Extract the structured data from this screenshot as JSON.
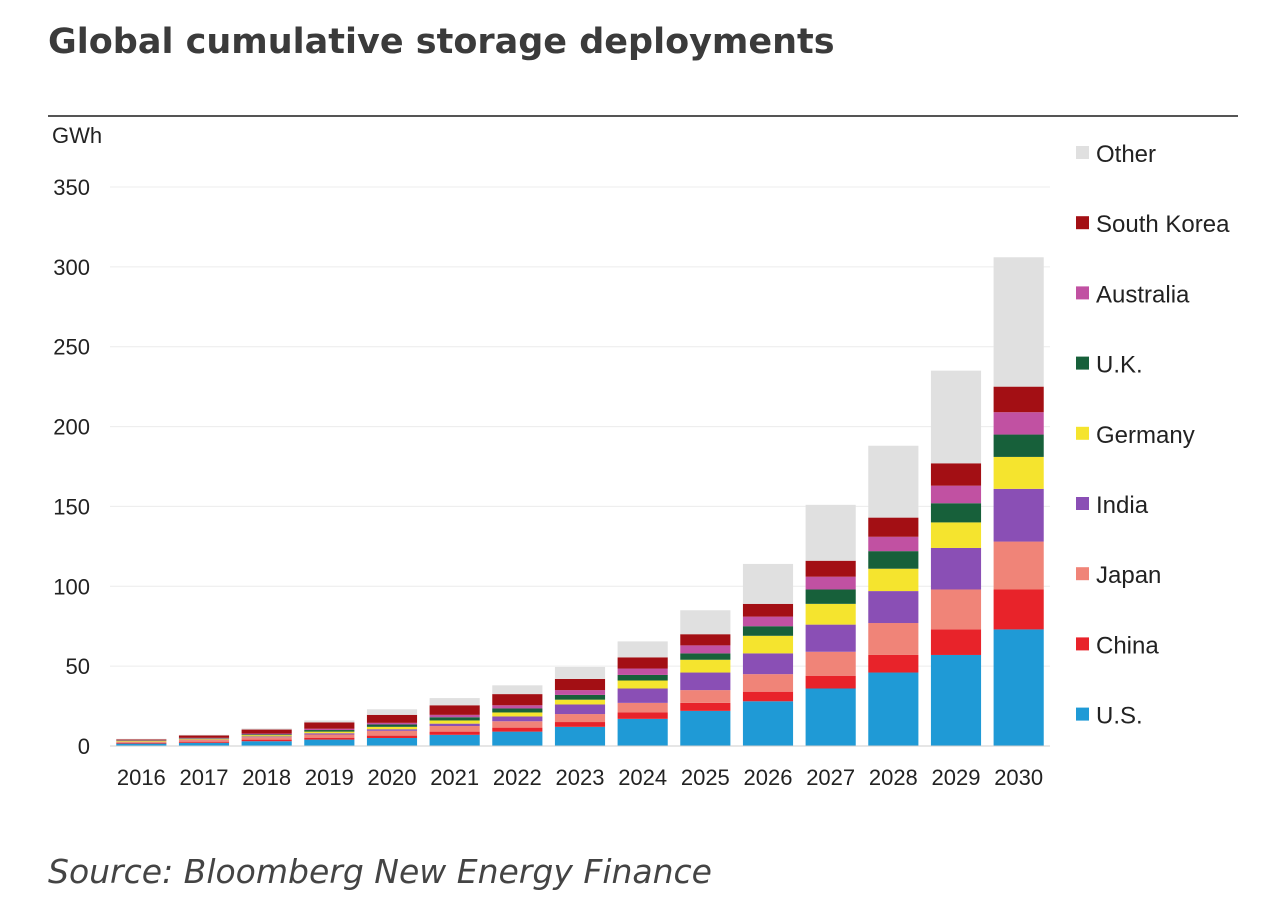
{
  "title": "Global cumulative storage deployments",
  "source": "Source: Bloomberg New Energy Finance",
  "chart_data": {
    "type": "bar",
    "stacked": true,
    "title": "Global cumulative storage deployments",
    "xlabel": "",
    "ylabel": "GWh",
    "ylim": [
      0,
      350
    ],
    "yticks": [
      0,
      50,
      100,
      150,
      200,
      250,
      300,
      350
    ],
    "grid": true,
    "legend_position": "right",
    "categories": [
      "2016",
      "2017",
      "2018",
      "2019",
      "2020",
      "2021",
      "2022",
      "2023",
      "2024",
      "2025",
      "2026",
      "2027",
      "2028",
      "2029",
      "2030"
    ],
    "series": [
      {
        "name": "U.S.",
        "color": "#1f9ad6",
        "values": [
          1.5,
          2,
          3,
          4,
          5,
          7,
          9,
          12,
          17,
          22,
          28,
          36,
          46,
          57,
          73
        ]
      },
      {
        "name": "China",
        "color": "#e8232a",
        "values": [
          0.5,
          0.7,
          1,
          1.2,
          1.5,
          2,
          2.5,
          3,
          4,
          5,
          6,
          8,
          11,
          16,
          25
        ]
      },
      {
        "name": "Japan",
        "color": "#f08478",
        "values": [
          0.5,
          1,
          1.5,
          2,
          3,
          3.5,
          4,
          5,
          6,
          8,
          11,
          15,
          20,
          25,
          30
        ]
      },
      {
        "name": "India",
        "color": "#8a4fb5",
        "values": [
          0.2,
          0.3,
          0.5,
          0.8,
          1,
          1.5,
          3,
          6,
          9,
          11,
          13,
          17,
          20,
          26,
          33
        ]
      },
      {
        "name": "Germany",
        "color": "#f5e42e",
        "values": [
          0.5,
          0.5,
          0.8,
          1,
          1.5,
          2,
          2.5,
          3,
          5,
          8,
          11,
          13,
          14,
          16,
          20
        ]
      },
      {
        "name": "U.K.",
        "color": "#17603a",
        "values": [
          0.2,
          0.3,
          0.5,
          1,
          1.5,
          2,
          2.5,
          3,
          3.5,
          4,
          6,
          9,
          11,
          12,
          14
        ]
      },
      {
        "name": "Australia",
        "color": "#c151a2",
        "values": [
          0.2,
          0.3,
          0.5,
          0.8,
          1,
          1.5,
          2,
          3,
          4,
          5,
          6,
          8,
          9,
          11,
          14
        ]
      },
      {
        "name": "South Korea",
        "color": "#a30f14",
        "values": [
          0.5,
          1.5,
          2.5,
          4,
          5,
          6,
          7,
          7,
          7,
          7,
          8,
          10,
          12,
          14,
          16
        ]
      },
      {
        "name": "Other",
        "color": "#e0e0e0",
        "values": [
          0.4,
          0.4,
          0.7,
          1.2,
          3.5,
          4.5,
          5.5,
          7.5,
          10,
          15,
          25,
          35,
          45,
          58,
          81
        ]
      }
    ]
  }
}
